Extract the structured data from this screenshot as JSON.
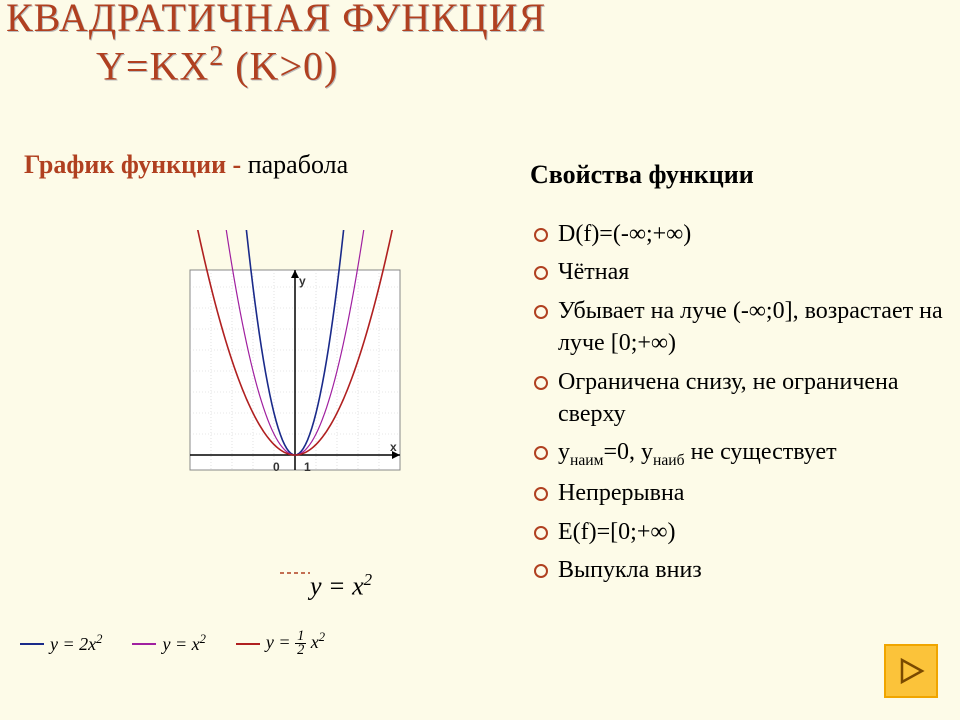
{
  "colors": {
    "accent": "#b04020",
    "title": "#b04020",
    "text": "#222222",
    "bg": "#fdfbe8",
    "grid_border": "#888888",
    "grid_minor": "#d0d0d0",
    "axis": "#000000",
    "nav_bg": "#fbc33a",
    "nav_border": "#f0a500"
  },
  "title": {
    "line1": "КВАДРАТИЧНАЯ ФУНКЦИЯ",
    "line2_prefix": "Y=KX",
    "line2_exp": "2",
    "line2_suffix": "  (K>0)"
  },
  "subtitle": {
    "label": "График функции - ",
    "value": "парабола"
  },
  "chart": {
    "type": "line",
    "xlim": [
      -5,
      5
    ],
    "ylim": [
      -1,
      9
    ],
    "grid": true,
    "grid_step": 1,
    "grid_color": "#d0d0d0",
    "axis_color": "#000000",
    "axis_labels": {
      "x": "x",
      "y": "y"
    },
    "tick_labels": {
      "zero": "0",
      "one": "1"
    },
    "line_width_thin": 1.2,
    "line_width_med": 1.6,
    "curves": [
      {
        "name": "2x2",
        "k": 2.0,
        "color": "#1a2a8a",
        "width": 1.6
      },
      {
        "name": "x2",
        "k": 1.0,
        "color": "#a020a0",
        "width": 1.2
      },
      {
        "name": "0.5x2",
        "k": 0.5,
        "color": "#b02020",
        "width": 1.6
      }
    ]
  },
  "equation_main": "y = x²",
  "legend": [
    {
      "color": "#1a2a8a",
      "label": "y = 2x²"
    },
    {
      "color": "#a020a0",
      "label": "y = x²"
    },
    {
      "color": "#b02020",
      "label": "y = ½ x²"
    }
  ],
  "properties": {
    "title": "Свойства функции",
    "items": [
      "D(f)=(-∞;+∞)",
      "Чётная",
      "Убывает на луче (-∞;0], возрастает на луче [0;+∞)",
      "Ограничена снизу, не ограничена сверху",
      "y<sub>наим</sub>=0, y<sub>наиб</sub>  не существует",
      "Непрерывна",
      "E(f)=[0;+∞)",
      "Выпукла вниз"
    ]
  },
  "dash_accent": {
    "color": "#b04020",
    "stroke": 1.5,
    "gap": 3
  }
}
